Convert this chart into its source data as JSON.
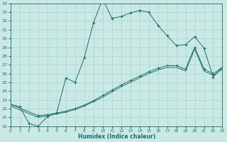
{
  "xlabel": "Humidex (Indice chaleur)",
  "xlim": [
    0,
    23
  ],
  "ylim": [
    20,
    34
  ],
  "background_color": "#cae9e5",
  "line_color": "#1a7068",
  "grid_color": "#a8d4cf",
  "line1_x": [
    0,
    1,
    2,
    3,
    4,
    5,
    6,
    7,
    8,
    9,
    10,
    11,
    12,
    13,
    14,
    15,
    16,
    17,
    18,
    19,
    20,
    21,
    22,
    23
  ],
  "line1_y": [
    22.5,
    22.2,
    20.3,
    20.0,
    21.1,
    21.5,
    25.5,
    25.0,
    27.8,
    31.8,
    34.5,
    32.3,
    32.5,
    32.9,
    33.2,
    33.0,
    31.5,
    30.3,
    29.2,
    29.3,
    30.2,
    28.9,
    25.6,
    26.7
  ],
  "line2_x": [
    0,
    3,
    4,
    5,
    6,
    7,
    8,
    9,
    10,
    11,
    12,
    13,
    14,
    15,
    16,
    17,
    18,
    19,
    20,
    21,
    22,
    23
  ],
  "line2_y": [
    22.5,
    21.2,
    21.3,
    21.5,
    21.7,
    22.0,
    22.4,
    22.9,
    23.5,
    24.1,
    24.7,
    25.2,
    25.7,
    26.2,
    26.6,
    26.9,
    26.9,
    26.5,
    29.0,
    26.5,
    26.0,
    26.7
  ],
  "line3_x": [
    0,
    3,
    4,
    5,
    6,
    7,
    8,
    9,
    10,
    11,
    12,
    13,
    14,
    15,
    16,
    17,
    18,
    19,
    20,
    21,
    22,
    23
  ],
  "line3_y": [
    22.3,
    21.0,
    21.2,
    21.4,
    21.6,
    21.9,
    22.3,
    22.8,
    23.3,
    23.9,
    24.5,
    25.0,
    25.5,
    26.0,
    26.4,
    26.7,
    26.7,
    26.3,
    28.8,
    26.3,
    25.8,
    26.5
  ]
}
